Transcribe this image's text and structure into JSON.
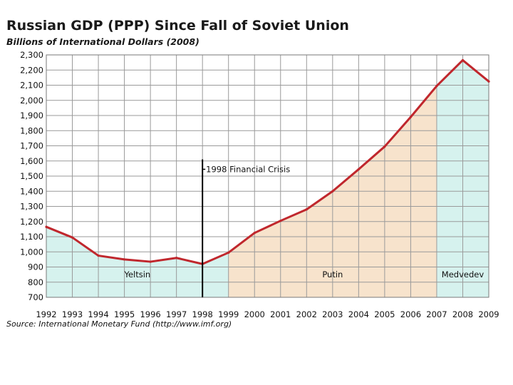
{
  "chart_data": {
    "type": "line",
    "title": "Russian GDP (PPP) Since Fall of Soviet Union",
    "subtitle": "Billions of International Dollars (2008)",
    "source": "Source: International Monetary Fund (http://www.imf.org)",
    "x": [
      "1992",
      "1993",
      "1994",
      "1995",
      "1996",
      "1997",
      "1998",
      "1999",
      "2000",
      "2001",
      "2002",
      "2003",
      "2004",
      "2005",
      "2006",
      "2007",
      "2008",
      "2009"
    ],
    "ylim": [
      700,
      2300
    ],
    "yticks": [
      "700",
      "800",
      "900",
      "1,000",
      "1,100",
      "1,200",
      "1,300",
      "1,400",
      "1,500",
      "1,600",
      "1,700",
      "1,800",
      "1,900",
      "2,000",
      "2,100",
      "2,200",
      "2,300"
    ],
    "grid": true,
    "series": [
      {
        "values": [
          1165,
          1095,
          975,
          950,
          935,
          960,
          920,
          995,
          1125,
          1205,
          1280,
          1400,
          1545,
          1695,
          1890,
          2095,
          2265,
          2125
        ]
      }
    ],
    "eras": [
      {
        "label": "Yeltsin",
        "start": "1992",
        "end": "1999",
        "color": "#d6f2ee"
      },
      {
        "label": "Putin",
        "start": "1999",
        "end": "2007",
        "color": "#f7e3cc"
      },
      {
        "label": "Medvedev",
        "start": "2007",
        "end": "2009",
        "color": "#d6f2ee"
      }
    ],
    "annotation": {
      "label": "1998 Financial Crisis",
      "x": "1998"
    },
    "line_color": "#c0272d"
  }
}
